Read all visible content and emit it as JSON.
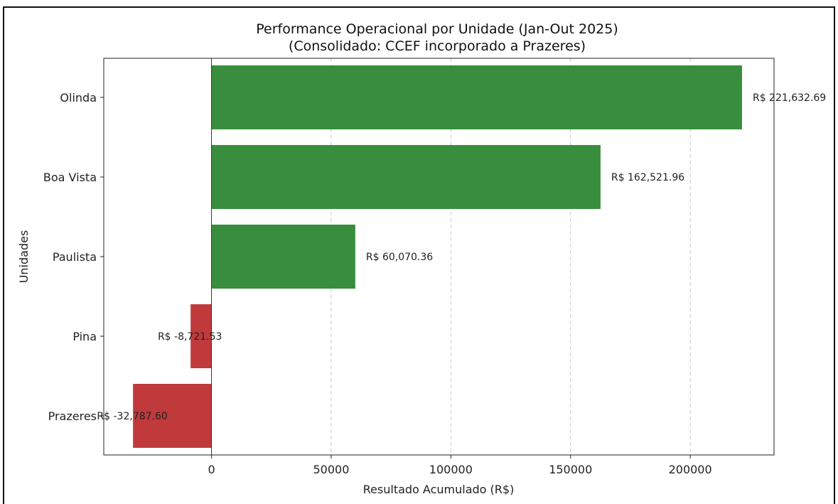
{
  "chart_data": {
    "type": "bar",
    "orientation": "horizontal",
    "title": "Performance Operacional por Unidade (Jan-Out 2025)",
    "subtitle": "(Consolidado: CCEF incorporado a Prazeres)",
    "xlabel": "Resultado Acumulado (R$)",
    "ylabel": "Unidades",
    "categories": [
      "Olinda",
      "Boa Vista",
      "Paulista",
      "Pina",
      "Prazeres"
    ],
    "values": [
      221632.69,
      162521.96,
      60070.36,
      -8721.53,
      -32787.6
    ],
    "data_labels": [
      "R$ 221,632.69",
      "R$ 162,521.96",
      "R$ 60,070.36",
      "R$ -8,721.53",
      "R$ -32,787.60"
    ],
    "xlim": [
      -45000,
      235000
    ],
    "xticks": [
      0,
      50000,
      100000,
      150000,
      200000
    ],
    "xtick_labels": [
      "0",
      "50000",
      "100000",
      "150000",
      "200000"
    ],
    "grid": "x-dashed",
    "colors": {
      "positive": "#388e3c",
      "negative": "#c0393b"
    }
  }
}
